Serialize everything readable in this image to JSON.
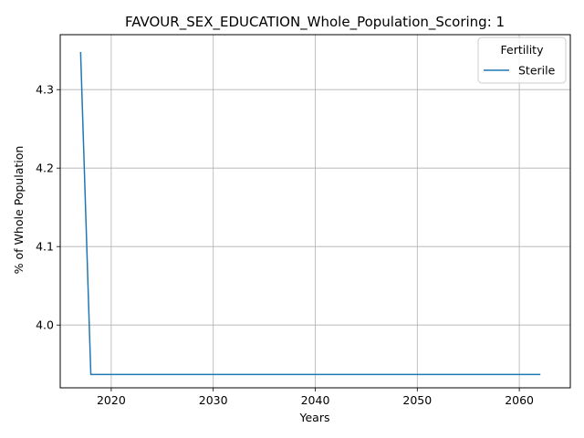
{
  "chart_data": {
    "type": "line",
    "title": "FAVOUR_SEX_EDUCATION_Whole_Population_Scoring: 1",
    "xlabel": "Years",
    "ylabel": "% of Whole Population",
    "xlim": [
      2015,
      2065
    ],
    "ylim": [
      3.92,
      4.37
    ],
    "xticks": [
      2020,
      2030,
      2040,
      2050,
      2060
    ],
    "yticks": [
      4.0,
      4.1,
      4.2,
      4.3
    ],
    "xtick_labels": [
      "2020",
      "2030",
      "2040",
      "2050",
      "2060"
    ],
    "ytick_labels": [
      "4.0",
      "4.1",
      "4.2",
      "4.3"
    ],
    "grid": true,
    "legend": {
      "title": "Fertility",
      "placement": "top-right"
    },
    "series": [
      {
        "name": "Sterile",
        "color": "#1f77b4",
        "x": [
          2017,
          2018,
          2019,
          2020,
          2021,
          2022,
          2023,
          2024,
          2025,
          2026,
          2027,
          2028,
          2029,
          2030,
          2031,
          2032,
          2033,
          2034,
          2035,
          2036,
          2037,
          2038,
          2039,
          2040,
          2041,
          2042,
          2043,
          2044,
          2045,
          2046,
          2047,
          2048,
          2049,
          2050,
          2051,
          2052,
          2053,
          2054,
          2055,
          2056,
          2057,
          2058,
          2059,
          2060,
          2061,
          2062
        ],
        "y": [
          4.347,
          3.937,
          3.937,
          3.937,
          3.937,
          3.937,
          3.937,
          3.937,
          3.937,
          3.937,
          3.937,
          3.937,
          3.937,
          3.937,
          3.937,
          3.937,
          3.937,
          3.937,
          3.937,
          3.937,
          3.937,
          3.937,
          3.937,
          3.937,
          3.937,
          3.937,
          3.937,
          3.937,
          3.937,
          3.937,
          3.937,
          3.937,
          3.937,
          3.937,
          3.937,
          3.937,
          3.937,
          3.937,
          3.937,
          3.937,
          3.937,
          3.937,
          3.937,
          3.937,
          3.937,
          3.937
        ]
      }
    ]
  }
}
